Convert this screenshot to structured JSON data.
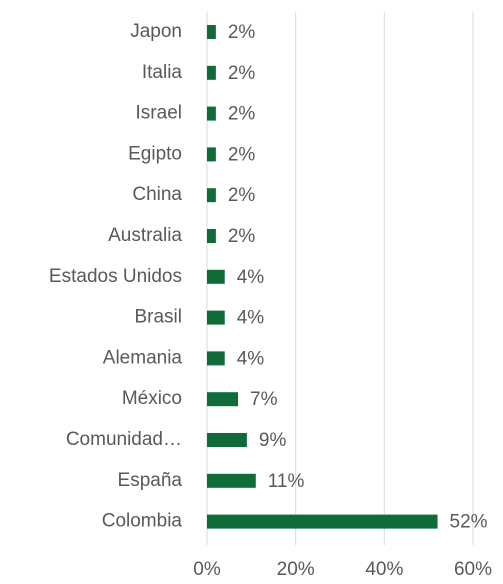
{
  "chart_data": {
    "type": "bar",
    "orientation": "horizontal",
    "categories": [
      "Japon",
      "Italia",
      "Israel",
      "Egipto",
      "China",
      "Australia",
      "Estados Unidos",
      "Brasil",
      "Alemania",
      "México",
      "Comunidad…",
      "España",
      "Colombia"
    ],
    "values": [
      2,
      2,
      2,
      2,
      2,
      2,
      4,
      4,
      4,
      7,
      9,
      11,
      52
    ],
    "value_labels": [
      "2%",
      "2%",
      "2%",
      "2%",
      "2%",
      "2%",
      "4%",
      "4%",
      "4%",
      "7%",
      "9%",
      "11%",
      "52%"
    ],
    "color": "#0f6b37",
    "xlim": [
      0,
      60
    ],
    "xticks": [
      {
        "value": 0,
        "label": "0%"
      },
      {
        "value": 20,
        "label": "20%"
      },
      {
        "value": 40,
        "label": "40%"
      },
      {
        "value": 60,
        "label": "60%"
      }
    ],
    "grid": true
  }
}
